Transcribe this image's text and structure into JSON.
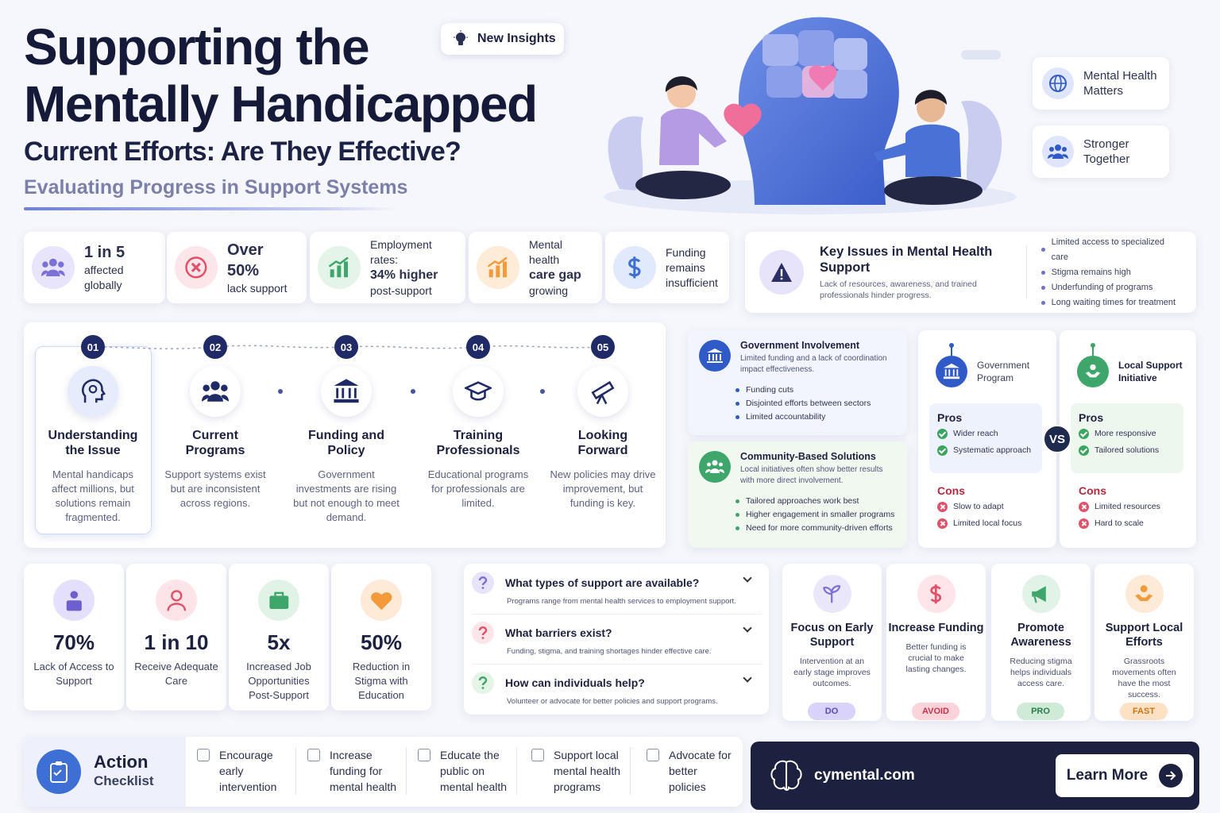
{
  "header": {
    "title_line1": "Supporting the",
    "title_line2": "Mentally Handicapped",
    "subtitle": "Current Efforts: Are They Effective?",
    "tagline": "Evaluating Progress in Support Systems",
    "badge": "New Insights"
  },
  "side_cards": [
    "Mental Health Matters",
    "Stronger Together"
  ],
  "stats": [
    {
      "main": "1 in 5",
      "sub": "affected globally"
    },
    {
      "main": "Over 50%",
      "sub": "lack support"
    },
    {
      "top": "Employment rates:",
      "main": "34% higher",
      "sub": "post-support"
    },
    {
      "top": "Mental health",
      "main": "care gap",
      "sub": "growing"
    },
    {
      "sub": "Funding remains insufficient"
    }
  ],
  "key_issues": {
    "title": "Key Issues in Mental Health Support",
    "text": "Lack of resources, awareness, and trained professionals hinder progress.",
    "items": [
      "Limited access to specialized care",
      "Stigma remains high",
      "Underfunding of programs",
      "Long waiting times for treatment"
    ]
  },
  "timeline": [
    {
      "number": "01",
      "title": "Understanding the Issue",
      "text": "Mental handicaps affect millions, but solutions remain fragmented."
    },
    {
      "number": "02",
      "title": "Current Programs",
      "text": "Support systems exist but are inconsistent across regions."
    },
    {
      "number": "03",
      "title": "Funding and Policy",
      "text": "Government investments are rising but not enough to meet demand."
    },
    {
      "number": "04",
      "title": "Training Professionals",
      "text": "Educational programs for professionals are limited."
    },
    {
      "number": "05",
      "title": "Looking Forward",
      "text": "New policies may drive improvement, but funding is key."
    }
  ],
  "government": {
    "title": "Government Involvement",
    "text": "Limited funding and a lack of coordination impact effectiveness.",
    "items": [
      "Funding cuts",
      "Disjointed efforts between sectors",
      "Limited accountability"
    ]
  },
  "community": {
    "title": "Community-Based Solutions",
    "text": "Local initiatives often show better results with more direct involvement.",
    "items": [
      "Tailored approaches work best",
      "Higher engagement in smaller programs",
      "Need for more community-driven efforts"
    ]
  },
  "compare": {
    "vs": "VS",
    "columns": [
      {
        "title": "Government Program",
        "pros_label": "Pros",
        "pros": [
          "Wider reach",
          "Systematic approach"
        ],
        "cons_label": "Cons",
        "cons": [
          "Slow to adapt",
          "Limited local focus"
        ]
      },
      {
        "title": "Local Support Initiative",
        "pros_label": "Pros",
        "pros": [
          "More responsive",
          "Tailored solutions"
        ],
        "cons_label": "Cons",
        "cons": [
          "Limited resources",
          "Hard to scale"
        ]
      }
    ]
  },
  "big_stats": [
    {
      "value": "70%",
      "label": "Lack of Access to Support"
    },
    {
      "value": "1 in 10",
      "label": "Receive Adequate Care"
    },
    {
      "value": "5x",
      "label": "Increased Job Opportunities Post-Support"
    },
    {
      "value": "50%",
      "label": "Reduction in Stigma with Education"
    }
  ],
  "faq": [
    {
      "q": "What types of support are available?",
      "a": "Programs range from mental health services to employment support."
    },
    {
      "q": "What barriers exist?",
      "a": "Funding, stigma, and training shortages hinder effective care."
    },
    {
      "q": "How can individuals help?",
      "a": "Volunteer or advocate for better policies and support programs."
    }
  ],
  "actions": [
    {
      "title": "Focus on Early Support",
      "text": "Intervention at an early stage improves outcomes.",
      "tag": "DO"
    },
    {
      "title": "Increase Funding",
      "text": "Better funding is crucial to make lasting changes.",
      "tag": "AVOID"
    },
    {
      "title": "Promote Awareness",
      "text": "Reducing stigma helps individuals access care.",
      "tag": "PRO"
    },
    {
      "title": "Support Local Efforts",
      "text": "Grassroots movements often have the most success.",
      "tag": "FAST"
    }
  ],
  "checklist": {
    "title_1": "Action",
    "title_2": "Checklist",
    "items": [
      "Encourage early intervention",
      "Increase funding for mental health",
      "Educate the public on mental health",
      "Support local mental health programs",
      "Advocate for better policies"
    ]
  },
  "footer": {
    "site": "cymental.com",
    "button": "Learn More"
  }
}
